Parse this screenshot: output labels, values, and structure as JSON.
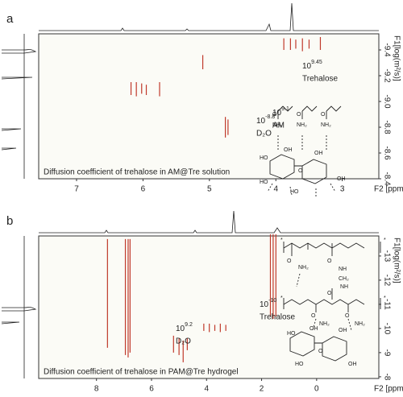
{
  "chart_data": [
    {
      "type": "dosy",
      "panel_label": "a",
      "caption": "Diffusion  coefficient of trehalose in AM@Tre solution",
      "x_label": "F2 [ppm]",
      "y_label": "F1[log(m²/s)]",
      "xlim": [
        7.57,
        2.45
      ],
      "xticks": [
        7,
        6,
        5,
        4,
        3
      ],
      "ylim": [
        -9.525,
        -8.4
      ],
      "yticks": [
        -9.4,
        -9.2,
        {
          "value": -9,
          "label": "-9.0"
        },
        -8.8,
        -8.6,
        -8.4
      ],
      "color": "#c0392b",
      "x": [
        3.88,
        3.78,
        3.7,
        3.6,
        3.5,
        3.33,
        6.18,
        6.1,
        6.02,
        5.95,
        5.75,
        5.1,
        4.76,
        4.72
      ],
      "y_from": [
        -9.49,
        -9.49,
        -9.48,
        -9.49,
        -9.48,
        -9.5,
        -9.15,
        -9.15,
        -9.14,
        -9.13,
        -9.15,
        -9.36,
        -8.88,
        -8.86
      ],
      "y_to": [
        -9.4,
        -9.4,
        -9.41,
        -9.39,
        -9.41,
        -9.4,
        -9.05,
        -9.04,
        -9.06,
        -9.05,
        -9.04,
        -9.25,
        -8.72,
        -8.74
      ],
      "annotations": [
        {
          "base": "10",
          "sup": "9.45",
          "text": "Trehalose"
        },
        {
          "base": "10",
          "sup": "9.1",
          "text": "AM"
        },
        {
          "base": "10",
          "sup": "-8.8",
          "text": "D₂O"
        }
      ],
      "structure_labels": [
        "O",
        "NH₂",
        "O",
        "NH₂",
        "O",
        "NH₂",
        "HO",
        "OH",
        "HO",
        "O",
        "OH",
        "HO",
        "OH"
      ]
    },
    {
      "type": "dosy",
      "panel_label": "b",
      "caption": "Diffusion  coefficient of trehalose in PAM@Tre hydrogel",
      "x_label": "F2 [ppm]",
      "y_label": "F1[log(m²/s)]",
      "xlim": [
        10.1,
        -2.26
      ],
      "xticks": [
        8,
        6,
        4,
        2,
        0
      ],
      "ylim": [
        -13.83,
        -7.93
      ],
      "yticks": [
        -13,
        -12,
        -11,
        -10,
        -9,
        -8
      ],
      "color": "#c0392b",
      "x": [
        7.6,
        6.95,
        6.85,
        6.78,
        5.2,
        5.0,
        4.85,
        4.7,
        4.1,
        3.9,
        3.7,
        3.5,
        3.3,
        1.68,
        1.58,
        1.48
      ],
      "y_from": [
        -13.7,
        -13.7,
        -13.7,
        -13.7,
        -9.7,
        -9.6,
        -9.5,
        -9.6,
        -10.2,
        -10.2,
        -10.15,
        -10.2,
        -10.15,
        -13.9,
        -13.9,
        -13.9
      ],
      "y_to": [
        -9.2,
        -8.9,
        -8.8,
        -9.0,
        -9.0,
        -8.9,
        -8.6,
        -9.1,
        -9.9,
        -9.85,
        -9.9,
        -9.85,
        -9.9,
        -10.5,
        -10.4,
        -10.5
      ],
      "annotations": [
        {
          "base": "10",
          "sup": "9.2",
          "text": "D₂O"
        },
        {
          "base": "10",
          "sup": "-10",
          "text": "Trehalose"
        }
      ],
      "structure_labels": [
        "*",
        "*",
        "O",
        "NH₂",
        "O",
        "NH",
        "CH₂",
        "NH",
        "O",
        "*",
        "*",
        "O",
        "NH₂",
        "O",
        "NH₂",
        "HO",
        "OH",
        "O",
        "OH",
        "HO",
        "OH"
      ]
    }
  ]
}
